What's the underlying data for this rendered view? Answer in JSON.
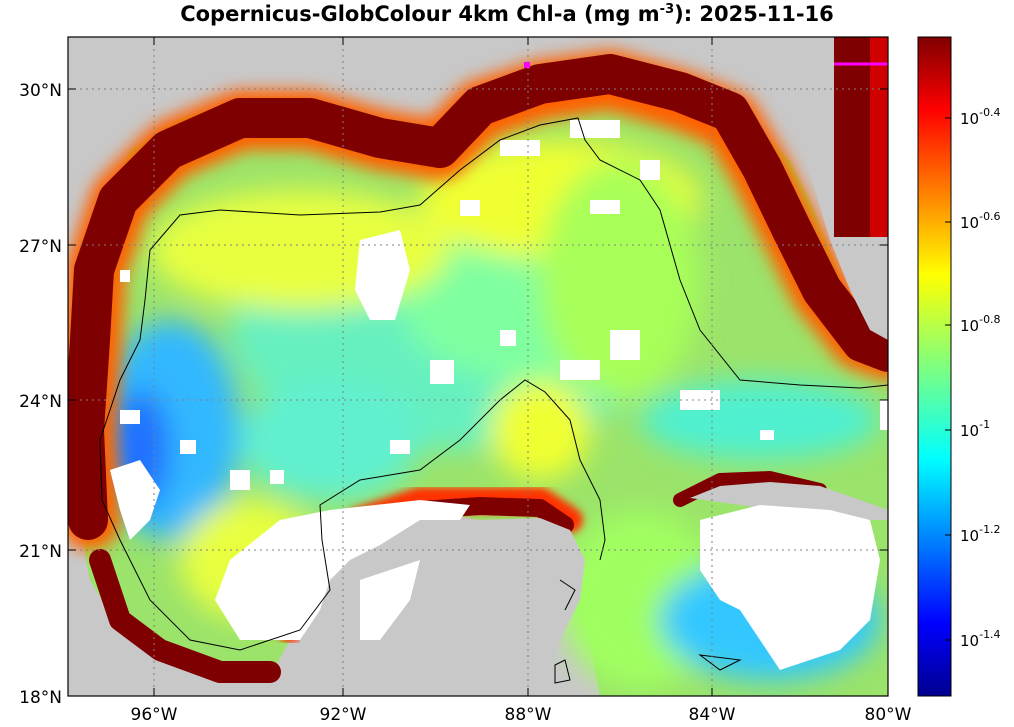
{
  "title": {
    "prefix": "Copernicus-GlobColour 4km Chl-a (mg m",
    "exp": "-3",
    "suffix": "): 2025-11-16"
  },
  "axes": {
    "lat_labels": [
      "30°N",
      "27°N",
      "24°N",
      "21°N",
      "18°N"
    ],
    "lon_labels": [
      "96°W",
      "92°W",
      "88°W",
      "84°W",
      "80°W"
    ]
  },
  "colorbar": {
    "labels": [
      {
        "base": "10",
        "exp": "-0.4"
      },
      {
        "base": "10",
        "exp": "-0.6"
      },
      {
        "base": "10",
        "exp": "-0.8"
      },
      {
        "base": "10",
        "exp": "-1"
      },
      {
        "base": "10",
        "exp": "-1.2"
      },
      {
        "base": "10",
        "exp": "-1.4"
      }
    ]
  },
  "colors": {
    "land": "#c8c8c8",
    "cloud": "#ffffff",
    "high_chl": "#7f0000",
    "low_chl": "#00008f",
    "marker": "#ff00ff"
  }
}
